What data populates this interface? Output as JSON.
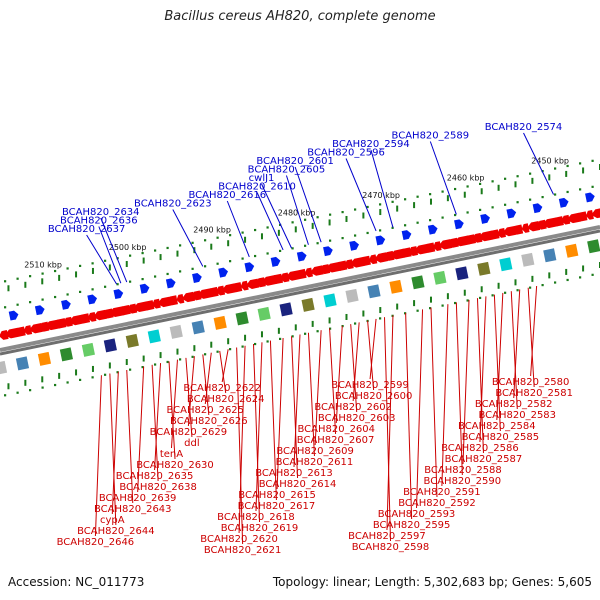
{
  "title": "Bacillus cereus AH820, complete genome",
  "footer": {
    "accession": "Accession: NC_011773",
    "summary": "Topology: linear; Length: 5,302,683 bp; Genes: 5,605"
  },
  "colors": {
    "forward_label": "#0000cc",
    "reverse_label": "#cc0000",
    "forward_gene": "#0022ee",
    "reverse_gene": "#ee0000",
    "axis": "#777777",
    "tick": "#1a7a1a"
  },
  "scale_labels": [
    {
      "text": "2450 kbp",
      "pos": 2450
    },
    {
      "text": "2460 kbp",
      "pos": 2460
    },
    {
      "text": "2470 kbp",
      "pos": 2470
    },
    {
      "text": "2480 kbp",
      "pos": 2480
    },
    {
      "text": "2490 kbp",
      "pos": 2490
    },
    {
      "text": "2500 kbp",
      "pos": 2500
    },
    {
      "text": "2510 kbp",
      "pos": 2510
    }
  ],
  "forward_genes": [
    {
      "label": "BCAH820_2574",
      "pos": 2449.5
    },
    {
      "label": "BCAH820_2589",
      "pos": 2461
    },
    {
      "label": "BCAH820_2594",
      "pos": 2468.5
    },
    {
      "label": "BCAH820_2596",
      "pos": 2470.5
    },
    {
      "label": "BCAH820_2601",
      "pos": 2477
    },
    {
      "label": "BCAH820_2605",
      "pos": 2478.5
    },
    {
      "label": "cwlJ1",
      "pos": 2480.5
    },
    {
      "label": "BCAH820_2610",
      "pos": 2481.5
    },
    {
      "label": "BCAH820_2616",
      "pos": 2485.5
    },
    {
      "label": "BCAH820_2623",
      "pos": 2491
    },
    {
      "label": "BCAH820_2634",
      "pos": 2500
    },
    {
      "label": "BCAH820_2636",
      "pos": 2500.7
    },
    {
      "label": "BCAH820_2637",
      "pos": 2501.2
    }
  ],
  "reverse_genes": [
    {
      "label": "BCAH820_2580",
      "pos": 2451.5
    },
    {
      "label": "BCAH820_2581",
      "pos": 2452.5
    },
    {
      "label": "BCAH820_2582",
      "pos": 2453.5
    },
    {
      "label": "BCAH820_2583",
      "pos": 2454.5
    },
    {
      "label": "BCAH820_2584",
      "pos": 2455.5
    },
    {
      "label": "BCAH820_2585",
      "pos": 2456.5
    },
    {
      "label": "BCAH820_2586",
      "pos": 2457.5
    },
    {
      "label": "BCAH820_2587",
      "pos": 2458.5
    },
    {
      "label": "BCAH820_2588",
      "pos": 2459.5
    },
    {
      "label": "BCAH820_2590",
      "pos": 2461
    },
    {
      "label": "BCAH820_2591",
      "pos": 2462
    },
    {
      "label": "BCAH820_2592",
      "pos": 2464
    },
    {
      "label": "BCAH820_2593",
      "pos": 2465
    },
    {
      "label": "BCAH820_2595",
      "pos": 2467
    },
    {
      "label": "BCAH820_2597",
      "pos": 2468.5
    },
    {
      "label": "BCAH820_2598",
      "pos": 2469.5
    },
    {
      "label": "BCAH820_2599",
      "pos": 2470.5
    },
    {
      "label": "BCAH820_2600",
      "pos": 2471.5
    },
    {
      "label": "BCAH820_2602",
      "pos": 2472.5
    },
    {
      "label": "BCAH820_2603",
      "pos": 2473.5
    },
    {
      "label": "BCAH820_2604",
      "pos": 2474.5
    },
    {
      "label": "BCAH820_2607",
      "pos": 2476
    },
    {
      "label": "BCAH820_2609",
      "pos": 2477
    },
    {
      "label": "BCAH820_2611",
      "pos": 2478.5
    },
    {
      "label": "BCAH820_2613",
      "pos": 2479.5
    },
    {
      "label": "BCAH820_2614",
      "pos": 2480.5
    },
    {
      "label": "BCAH820_2615",
      "pos": 2481.5
    },
    {
      "label": "BCAH820_2617",
      "pos": 2483
    },
    {
      "label": "BCAH820_2618",
      "pos": 2484
    },
    {
      "label": "BCAH820_2619",
      "pos": 2485
    },
    {
      "label": "BCAH820_2620",
      "pos": 2486
    },
    {
      "label": "BCAH820_2621",
      "pos": 2487
    },
    {
      "label": "BCAH820_2622",
      "pos": 2488
    },
    {
      "label": "BCAH820_2624",
      "pos": 2489
    },
    {
      "label": "BCAH820_2625",
      "pos": 2490
    },
    {
      "label": "BCAH820_2626",
      "pos": 2491
    },
    {
      "label": "BCAH820_2629",
      "pos": 2492
    },
    {
      "label": "ddl",
      "pos": 2493
    },
    {
      "label": "tenA",
      "pos": 2494
    },
    {
      "label": "BCAH820_2630",
      "pos": 2495
    },
    {
      "label": "BCAH820_2635",
      "pos": 2496
    },
    {
      "label": "BCAH820_2638",
      "pos": 2497
    },
    {
      "label": "BCAH820_2639",
      "pos": 2498
    },
    {
      "label": "BCAH820_2643",
      "pos": 2500
    },
    {
      "label": "cypA",
      "pos": 2501
    },
    {
      "label": "BCAH820_2644",
      "pos": 2502
    },
    {
      "label": "BCAH820_2646",
      "pos": 2503
    }
  ]
}
